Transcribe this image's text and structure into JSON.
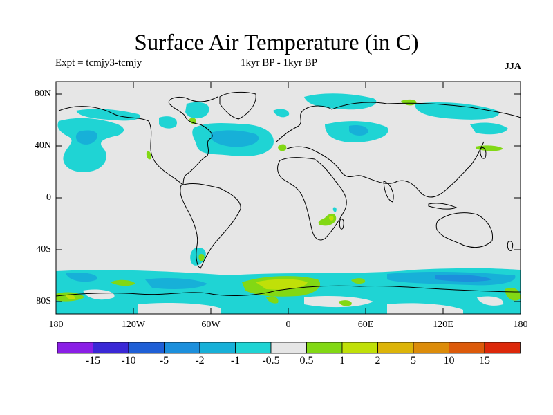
{
  "title": "Surface Air Temperature (in C)",
  "subtitle_left": "Expt = tcmjy3-tcmjy",
  "subtitle_center": "1kyr BP - 1kyr BP",
  "season": "JJA",
  "lat_labels": [
    "80N",
    "40N",
    "0",
    "40S",
    "80S"
  ],
  "lon_labels": [
    "180",
    "120W",
    "60W",
    "0",
    "60E",
    "120E",
    "180"
  ],
  "colorbar": {
    "colors": [
      "#8a1ee6",
      "#3a28d6",
      "#1f5fd6",
      "#1c8fdc",
      "#17b0d8",
      "#1fd4d4",
      "#e6e6e6",
      "#82d814",
      "#c0e008",
      "#dcb408",
      "#dc8c0a",
      "#dc5a0a",
      "#dc280a"
    ],
    "labels": [
      "-15",
      "-10",
      "-5",
      "-2",
      "-1",
      "-0.5",
      "0.5",
      "1",
      "2",
      "5",
      "10",
      "15"
    ]
  },
  "map_data": {
    "background_color": "#e6e6e6",
    "anomaly_levels": {
      "cyan": "#1fd4d4",
      "lightblue": "#17b0d8",
      "blue": "#1c8fdc",
      "green": "#82d814",
      "yellowgreen": "#c0e008"
    }
  }
}
